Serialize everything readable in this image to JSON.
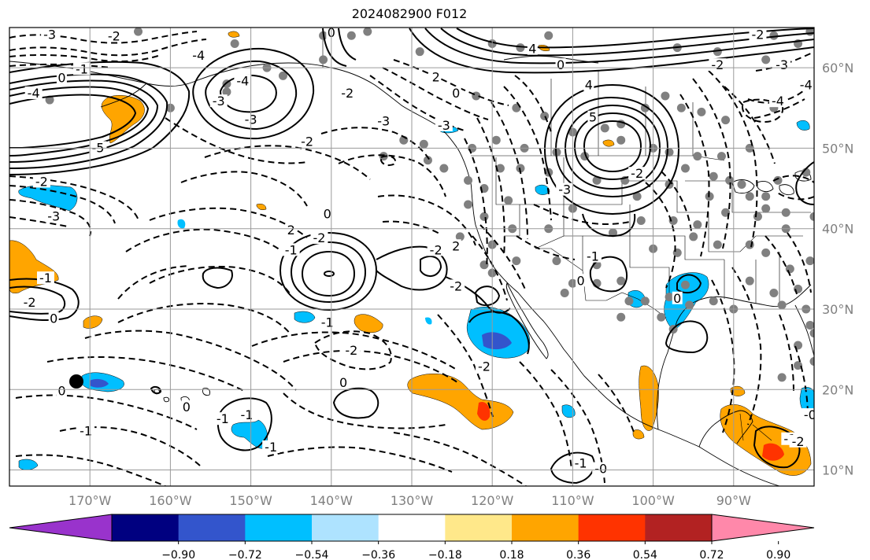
{
  "title": "2024082900 F012",
  "map": {
    "lon_ticks": [
      "170°W",
      "160°W",
      "150°W",
      "140°W",
      "130°W",
      "120°W",
      "110°W",
      "100°W",
      "90°W"
    ],
    "lat_ticks": [
      "60°N",
      "50°N",
      "40°N",
      "30°N",
      "20°N",
      "10°N"
    ],
    "contour_labels": [
      {
        "text": "-3",
        "lon": -175,
        "lat": 63.8
      },
      {
        "text": "-2",
        "lon": -167,
        "lat": 63.6
      },
      {
        "text": "-1",
        "lon": -171,
        "lat": 59.5
      },
      {
        "text": "0",
        "lon": -173.5,
        "lat": 58.4
      },
      {
        "text": "-4",
        "lon": -177,
        "lat": 56.5
      },
      {
        "text": "-5",
        "lon": -169,
        "lat": 49.7
      },
      {
        "text": "-4",
        "lon": -156.5,
        "lat": 61.2
      },
      {
        "text": "-3",
        "lon": -154,
        "lat": 55.5
      },
      {
        "text": "-4",
        "lon": -151,
        "lat": 58
      },
      {
        "text": "-3",
        "lon": -150,
        "lat": 53.2
      },
      {
        "text": "-2",
        "lon": -143,
        "lat": 50.5
      },
      {
        "text": "-2",
        "lon": -176,
        "lat": 45.5
      },
      {
        "text": "-3",
        "lon": -174.5,
        "lat": 41.2
      },
      {
        "text": "-1",
        "lon": -175.5,
        "lat": 33.5
      },
      {
        "text": "-2",
        "lon": -177.5,
        "lat": 30.5
      },
      {
        "text": "0",
        "lon": -174.5,
        "lat": 28.5
      },
      {
        "text": "0",
        "lon": -140,
        "lat": 64
      },
      {
        "text": "-2",
        "lon": -138,
        "lat": 56.5
      },
      {
        "text": "-3",
        "lon": -133.5,
        "lat": 53
      },
      {
        "text": "2",
        "lon": -127,
        "lat": 58.5
      },
      {
        "text": "0",
        "lon": -124.5,
        "lat": 56.5
      },
      {
        "text": "-3",
        "lon": -126,
        "lat": 52.5
      },
      {
        "text": "0",
        "lon": -111.5,
        "lat": 60
      },
      {
        "text": "4",
        "lon": -108,
        "lat": 57.5
      },
      {
        "text": "5",
        "lon": -107.5,
        "lat": 53.5
      },
      {
        "text": "-3",
        "lon": -111,
        "lat": 44.5
      },
      {
        "text": "-2",
        "lon": -102,
        "lat": 46.5
      },
      {
        "text": "4",
        "lon": -115,
        "lat": 62
      },
      {
        "text": "-2",
        "lon": -87,
        "lat": 63.8
      },
      {
        "text": "-2",
        "lon": -92,
        "lat": 60
      },
      {
        "text": "-3",
        "lon": -84,
        "lat": 60
      },
      {
        "text": "-4",
        "lon": -81,
        "lat": 57.5
      },
      {
        "text": "-4",
        "lon": -84.5,
        "lat": 55.5
      },
      {
        "text": "2",
        "lon": -145,
        "lat": 39.5
      },
      {
        "text": "-2",
        "lon": -141.5,
        "lat": 38.5
      },
      {
        "text": "0",
        "lon": -140.5,
        "lat": 41.5
      },
      {
        "text": "-1",
        "lon": -145,
        "lat": 37
      },
      {
        "text": "-2",
        "lon": -127,
        "lat": 37
      },
      {
        "text": "2",
        "lon": -124.5,
        "lat": 37.5
      },
      {
        "text": "-2",
        "lon": -124.5,
        "lat": 32.5
      },
      {
        "text": "-2",
        "lon": -137.5,
        "lat": 24.5
      },
      {
        "text": "-1",
        "lon": -140.5,
        "lat": 28
      },
      {
        "text": "-2",
        "lon": -121,
        "lat": 22.5
      },
      {
        "text": "0",
        "lon": -138.5,
        "lat": 20.5
      },
      {
        "text": "0",
        "lon": -109,
        "lat": 33.2
      },
      {
        "text": "-1",
        "lon": -107.5,
        "lat": 36.2
      },
      {
        "text": "0",
        "lon": -97,
        "lat": 31
      },
      {
        "text": "0",
        "lon": -173.5,
        "lat": 19.5
      },
      {
        "text": "0",
        "lon": -158,
        "lat": 17.5
      },
      {
        "text": "-1",
        "lon": -150.5,
        "lat": 16.5
      },
      {
        "text": "-1",
        "lon": -153.5,
        "lat": 16
      },
      {
        "text": "-1",
        "lon": -147.5,
        "lat": 12.5
      },
      {
        "text": "-1",
        "lon": -170.5,
        "lat": 14.5
      },
      {
        "text": "-0",
        "lon": -106.5,
        "lat": 9.8
      },
      {
        "text": "-1",
        "lon": -109,
        "lat": 10.5
      },
      {
        "text": "-0",
        "lon": -80.5,
        "lat": 16.5
      },
      {
        "text": "-1",
        "lon": -83,
        "lat": 13.5
      },
      {
        "text": "-2",
        "lon": -82,
        "lat": 13.2
      },
      {
        "text": "-0",
        "lon": -78.5,
        "lat": 12.5
      },
      {
        "text": "0",
        "lon": -77,
        "lat": 9.2
      }
    ]
  },
  "colorbar": {
    "colors": [
      "#9933cc",
      "#000080",
      "#3355cc",
      "#00bfff",
      "#aee3ff",
      "#ffffff",
      "#ffe88a",
      "#ffa500",
      "#ff3300",
      "#b22222",
      "#ff88aa"
    ],
    "labels": [
      "−0.90",
      "−0.72",
      "−0.54",
      "−0.36",
      "−0.18",
      "0.18",
      "0.36",
      "0.54",
      "0.72",
      "0.90"
    ]
  }
}
